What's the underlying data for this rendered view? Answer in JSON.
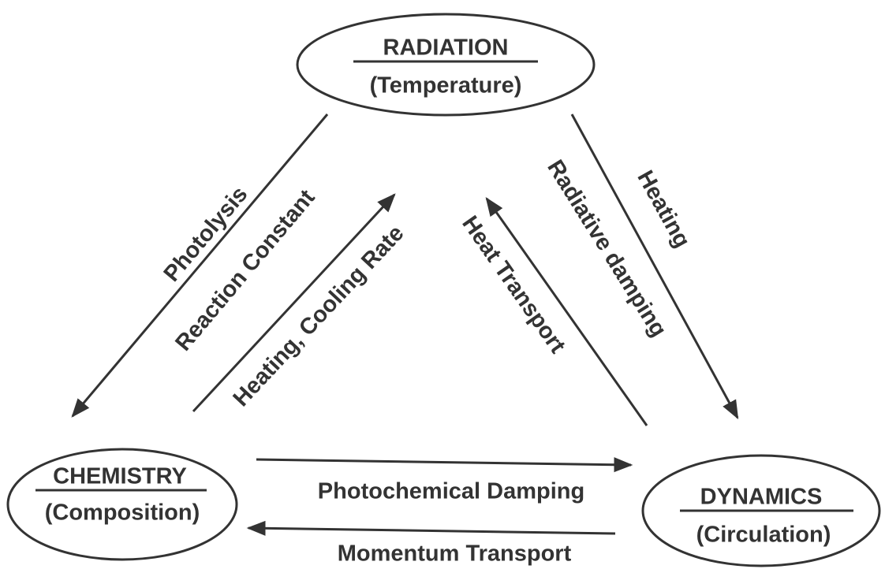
{
  "nodes": [
    {
      "label": "RADIATION",
      "sublabel": "(Temperature)"
    },
    {
      "label": "CHEMISTRY",
      "sublabel": "(Composition)"
    },
    {
      "label": "DYNAMICS",
      "sublabel": "(Circulation)"
    }
  ],
  "edges": [
    {
      "label": "Photolysis"
    },
    {
      "label": "Reaction Constant"
    },
    {
      "label": "Heating, Cooling Rate"
    },
    {
      "label": "Heat Transport"
    },
    {
      "label": "Radiative damping"
    },
    {
      "label": "Heating"
    },
    {
      "label": "Photochemical Damping"
    },
    {
      "label": "Momentum Transport"
    }
  ]
}
